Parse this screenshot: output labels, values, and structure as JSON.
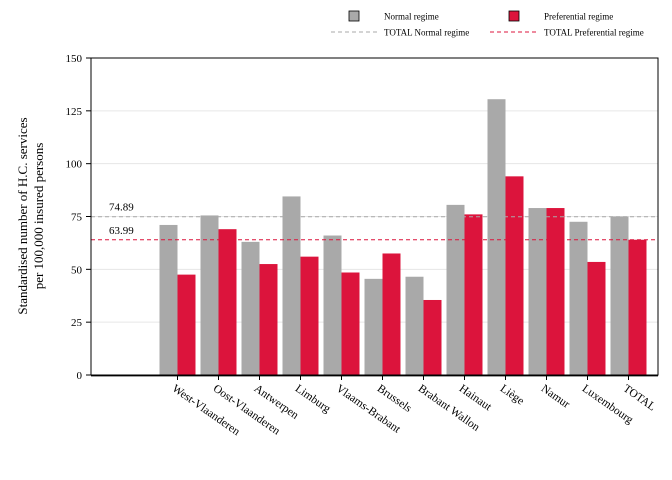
{
  "chart_data": {
    "type": "bar",
    "ylabel": [
      "Standardised number of H.C. services",
      "per 100,000 insured persons"
    ],
    "ylim": [
      0,
      150
    ],
    "yticks": [
      0,
      25,
      50,
      75,
      100,
      125,
      150
    ],
    "grid": true,
    "legend_position": "top",
    "categories": [
      "West-Vlaanderen",
      "Oost-Vlaanderen",
      "Antwerpen",
      "Limburg",
      "Vlaams-Brabant",
      "Brussels",
      "Brabant Wallon",
      "Hainaut",
      "Liège",
      "Namur",
      "Luxembourg",
      "TOTAL"
    ],
    "series": [
      {
        "name": "Normal regime",
        "color": "#a9a9a9",
        "values": [
          71,
          75.5,
          63,
          84.5,
          66,
          45.5,
          46.5,
          80.5,
          130.5,
          79,
          72.5,
          75
        ]
      },
      {
        "name": "Preferential regime",
        "color": "#dc143c",
        "values": [
          47.5,
          69,
          52.5,
          56,
          48.5,
          57.5,
          35.5,
          76,
          94,
          79,
          53.5,
          64
        ]
      }
    ],
    "reference_lines": [
      {
        "name": "TOTAL Normal regime",
        "value": 74.89,
        "label": "74.89",
        "color": "#a9a9a9"
      },
      {
        "name": "TOTAL Preferential regime",
        "value": 63.99,
        "label": "63.99",
        "color": "#dc143c"
      }
    ]
  }
}
